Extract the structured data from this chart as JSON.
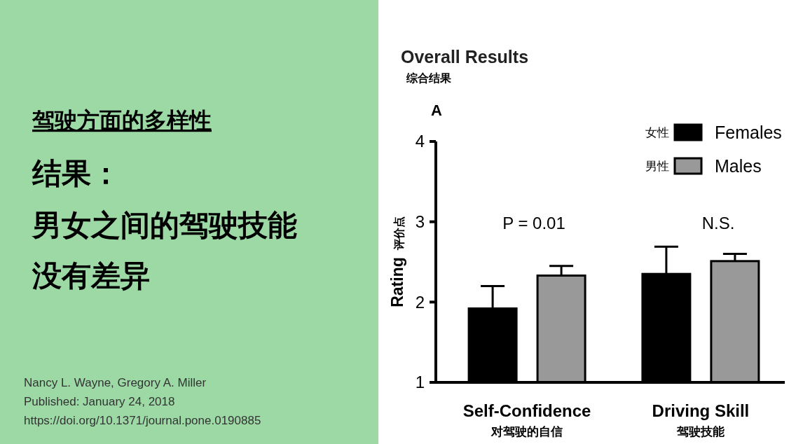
{
  "chart_data": {
    "type": "bar",
    "title": "Overall Results",
    "subtitle": "综合结果",
    "ylabel": "Rating 评价点",
    "categories": [
      "Self-Confidence\n对驾驶的自信",
      "Driving Skill\n驾驶技能"
    ],
    "series": [
      {
        "name": "Females",
        "color": "#000000",
        "values": [
          1.92,
          2.35
        ],
        "errors": [
          [
            1.92,
            2.2
          ],
          [
            2.35,
            2.69
          ]
        ]
      },
      {
        "name": "Males",
        "color": "#999999",
        "values": [
          2.33,
          2.51
        ],
        "errors": [
          [
            2.33,
            2.45
          ],
          [
            2.51,
            2.6
          ]
        ]
      }
    ],
    "ylim": [
      1,
      4
    ],
    "yticks": [
      1,
      2,
      3,
      4
    ],
    "legend": "top right",
    "annotations": [
      "A",
      "P = 0.01",
      "N.S.",
      "女性",
      "男性",
      "驾驶方面的多样性",
      "结果：",
      "男女之间的驾驶技能",
      "没有差异",
      "Nancy L. Wayne, Gregory A. Miller",
      "Published: January 24, 2018",
      "https://doi.org/10.1371/journal.pone.0190885"
    ]
  }
}
